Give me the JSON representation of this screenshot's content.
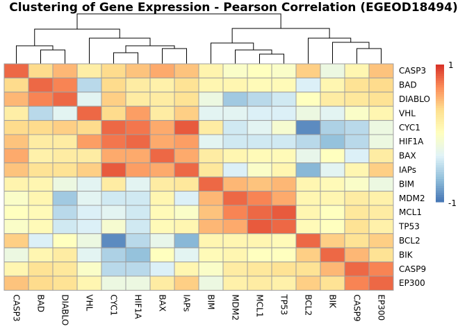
{
  "chart_data": {
    "type": "heatmap",
    "title": "Clustering of Gene Expression - Pearson Correlation (EGEOD18494)",
    "col_labels": [
      "CASP3",
      "BAD",
      "DIABLO",
      "VHL",
      "CYC1",
      "HIF1A",
      "BAX",
      "IAPs",
      "BIM",
      "MDM2",
      "MCL1",
      "TP53",
      "BCL2",
      "BIK",
      "CASP9",
      "EP300"
    ],
    "row_labels": [
      "CASP3",
      "BAD",
      "DIABLO",
      "VHL",
      "CYC1",
      "HIF1A",
      "BAX",
      "IAPs",
      "BIM",
      "MDM2",
      "MCL1",
      "TP53",
      "BCL2",
      "BIK",
      "CASP9",
      "EP300"
    ],
    "values": [
      [
        0.8,
        0.35,
        0.5,
        0.18,
        0.35,
        0.45,
        0.55,
        0.45,
        0.12,
        -0.05,
        0.0,
        -0.05,
        0.4,
        -0.2,
        0.1,
        0.45
      ],
      [
        0.35,
        0.8,
        0.7,
        -0.5,
        0.35,
        0.2,
        0.15,
        0.3,
        0.1,
        0.1,
        0.05,
        0.05,
        -0.35,
        0.1,
        0.3,
        0.35
      ],
      [
        0.5,
        0.7,
        0.8,
        -0.3,
        0.4,
        0.2,
        0.2,
        0.3,
        -0.2,
        -0.6,
        -0.5,
        -0.4,
        0.0,
        0.2,
        0.25,
        0.3
      ],
      [
        0.18,
        -0.5,
        -0.3,
        0.8,
        0.35,
        0.6,
        0.2,
        0.4,
        -0.3,
        -0.3,
        -0.35,
        -0.35,
        -0.2,
        -0.3,
        -0.05,
        0.1
      ],
      [
        0.35,
        0.35,
        0.4,
        0.35,
        0.8,
        0.75,
        0.55,
        0.85,
        0.2,
        -0.4,
        -0.3,
        -0.1,
        -0.9,
        -0.55,
        -0.5,
        -0.2
      ],
      [
        0.45,
        0.2,
        0.2,
        0.6,
        0.75,
        0.8,
        0.55,
        0.6,
        -0.3,
        -0.4,
        -0.4,
        -0.4,
        -0.5,
        -0.65,
        -0.5,
        -0.2
      ],
      [
        0.55,
        0.15,
        0.2,
        0.2,
        0.55,
        0.55,
        0.8,
        0.55,
        0.2,
        0.1,
        0.05,
        0.05,
        -0.25,
        0.0,
        -0.35,
        0.2
      ],
      [
        0.45,
        0.3,
        0.3,
        0.4,
        0.85,
        0.6,
        0.55,
        0.8,
        0.25,
        -0.35,
        -0.05,
        0.1,
        -0.7,
        -0.3,
        0.1,
        0.4
      ],
      [
        0.12,
        0.1,
        -0.2,
        -0.3,
        0.2,
        -0.3,
        0.2,
        0.25,
        0.8,
        0.5,
        0.45,
        0.5,
        0.1,
        0.05,
        -0.05,
        -0.2
      ],
      [
        -0.05,
        0.1,
        -0.6,
        -0.3,
        -0.4,
        -0.4,
        0.1,
        -0.35,
        0.5,
        0.8,
        0.7,
        0.55,
        0.1,
        0.1,
        0.2,
        0.15
      ],
      [
        0.0,
        0.05,
        -0.5,
        -0.35,
        -0.3,
        -0.4,
        0.05,
        -0.05,
        0.45,
        0.7,
        0.8,
        0.85,
        0.1,
        0.0,
        0.25,
        0.2
      ],
      [
        -0.05,
        0.05,
        -0.4,
        -0.35,
        -0.1,
        -0.4,
        0.05,
        0.1,
        0.5,
        0.55,
        0.85,
        0.8,
        0.05,
        0.0,
        0.3,
        0.15
      ],
      [
        0.4,
        -0.35,
        0.0,
        -0.2,
        -0.9,
        -0.5,
        -0.25,
        -0.7,
        0.1,
        0.1,
        0.1,
        0.05,
        0.8,
        0.4,
        0.3,
        0.4
      ],
      [
        -0.2,
        0.1,
        0.2,
        -0.3,
        -0.55,
        -0.65,
        0.0,
        -0.3,
        0.05,
        0.1,
        0.0,
        0.0,
        0.4,
        0.8,
        0.5,
        0.3
      ],
      [
        0.1,
        0.3,
        0.25,
        -0.05,
        -0.5,
        -0.5,
        -0.35,
        0.1,
        -0.05,
        0.2,
        0.25,
        0.3,
        0.3,
        0.5,
        0.8,
        0.7
      ],
      [
        0.45,
        0.35,
        0.3,
        0.1,
        -0.2,
        -0.2,
        0.2,
        0.4,
        -0.2,
        0.15,
        0.2,
        0.15,
        0.4,
        0.3,
        0.7,
        0.8
      ]
    ],
    "legend_ticks": [
      "1",
      "-1"
    ],
    "color_scale": [
      "#4575b4",
      "#91bfdb",
      "#e0f3f8",
      "#ffffbf",
      "#fee090",
      "#fc8d59",
      "#d73027"
    ],
    "value_range": [
      -1,
      1
    ],
    "legend_position": "right",
    "dendrogram": "top"
  }
}
